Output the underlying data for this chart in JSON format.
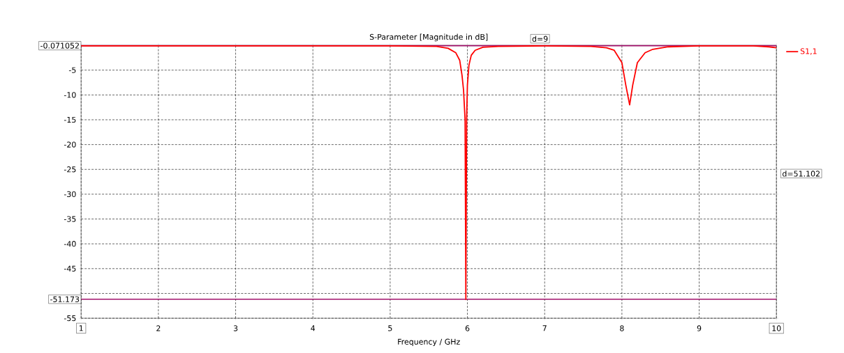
{
  "chart_data": {
    "type": "line",
    "title": "S-Parameter [Magnitude in dB]",
    "xlabel": "Frequency / GHz",
    "xlim": [
      1,
      10
    ],
    "xticks": [
      1,
      2,
      3,
      4,
      5,
      6,
      7,
      8,
      9,
      10
    ],
    "ylim": [
      -55,
      0
    ],
    "yticks": [
      -55,
      {
        "value": -50,
        "label": null
      },
      -45,
      -40,
      -35,
      -30,
      -25,
      -20,
      -15,
      -10,
      -5
    ],
    "grid": true,
    "legend": "top right",
    "marker": "none",
    "line_style": "solid",
    "series": [
      {
        "name": "S1,1",
        "color": "#ff0000",
        "x": [
          1,
          3,
          5,
          5.6,
          5.75,
          5.85,
          5.9,
          5.93,
          5.95,
          5.97,
          5.98,
          5.99,
          6.0,
          6.02,
          6.05,
          6.1,
          6.2,
          6.4,
          7,
          7.6,
          7.8,
          7.9,
          8.0,
          8.05,
          8.1,
          8.14,
          8.2,
          8.3,
          8.4,
          8.6,
          9,
          9.7,
          9.9,
          10
        ],
        "values": [
          -0.1,
          -0.1,
          -0.1,
          -0.2,
          -0.6,
          -1.5,
          -3,
          -6,
          -9,
          -15,
          -51.2,
          -15,
          -8,
          -4,
          -2,
          -1,
          -0.4,
          -0.2,
          -0.1,
          -0.2,
          -0.5,
          -1,
          -3.5,
          -8,
          -12,
          -8,
          -3.5,
          -1.5,
          -0.8,
          -0.3,
          -0.1,
          -0.1,
          -0.3,
          -0.5
        ]
      }
    ],
    "ref_lines": [
      {
        "axis": "y",
        "value": -0.071052,
        "label": "-0.071052",
        "color": "#a0106a"
      },
      {
        "axis": "y",
        "value": -51.173,
        "label": "-51.173",
        "color": "#a0106a"
      }
    ],
    "annotations": [
      "d=9",
      "d=51.102"
    ]
  }
}
